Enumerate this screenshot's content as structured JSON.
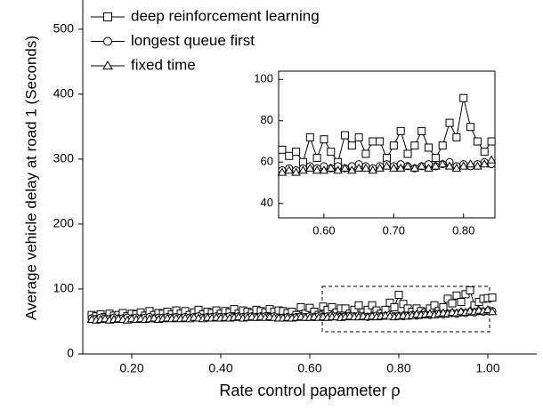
{
  "chart_data": [
    {
      "type": "line",
      "x_label": "Rate control papameter ρ",
      "y_label": "Average vehicle delay at road 1 (Seconds)",
      "legend": "upper left",
      "xlim": [
        0.09,
        1.11
      ],
      "ylim": [
        0,
        545
      ],
      "xticks": [
        {
          "value": 0.2,
          "label": "0.20"
        },
        {
          "value": 0.4,
          "label": "0.40"
        },
        {
          "value": 0.6,
          "label": "0.60"
        },
        {
          "value": 0.8,
          "label": "0.80"
        },
        {
          "value": 1.0,
          "label": "1.00"
        }
      ],
      "yticks": [
        0,
        100,
        200,
        300,
        400,
        500
      ],
      "x": [
        0.11,
        0.12,
        0.13,
        0.14,
        0.15,
        0.16,
        0.17,
        0.18,
        0.19,
        0.2,
        0.21,
        0.22,
        0.23,
        0.24,
        0.25,
        0.26,
        0.27,
        0.28,
        0.29,
        0.3,
        0.31,
        0.32,
        0.33,
        0.34,
        0.35,
        0.36,
        0.37,
        0.38,
        0.39,
        0.4,
        0.41,
        0.42,
        0.43,
        0.44,
        0.45,
        0.46,
        0.47,
        0.48,
        0.49,
        0.5,
        0.51,
        0.52,
        0.53,
        0.54,
        0.55,
        0.56,
        0.57,
        0.58,
        0.59,
        0.6,
        0.61,
        0.62,
        0.63,
        0.64,
        0.65,
        0.66,
        0.67,
        0.68,
        0.69,
        0.7,
        0.71,
        0.72,
        0.73,
        0.74,
        0.75,
        0.76,
        0.77,
        0.78,
        0.79,
        0.8,
        0.81,
        0.82,
        0.83,
        0.84,
        0.85,
        0.86,
        0.87,
        0.88,
        0.89,
        0.9,
        0.91,
        0.92,
        0.93,
        0.94,
        0.95,
        0.96,
        0.97,
        0.98,
        0.99,
        1.0,
        1.01
      ],
      "series": [
        {
          "name": "deep reinforcement learning",
          "color": "#000000",
          "marker": "square",
          "values": [
            60,
            58,
            61,
            57,
            62,
            59,
            60,
            63,
            58,
            62,
            61,
            64,
            59,
            66,
            60,
            63,
            62,
            65,
            61,
            67,
            62,
            66,
            60,
            64,
            68,
            61,
            65,
            63,
            67,
            62,
            66,
            64,
            69,
            62,
            67,
            65,
            63,
            68,
            66,
            64,
            69,
            65,
            67,
            66,
            63,
            65,
            60,
            72,
            62,
            71,
            65,
            60,
            73,
            68,
            72,
            64,
            70,
            70,
            62,
            68,
            75,
            64,
            68,
            75,
            67,
            62,
            68,
            79,
            72,
            91,
            77,
            70,
            65,
            70,
            66,
            64,
            70,
            75,
            66,
            72,
            85,
            78,
            90,
            80,
            92,
            98,
            75,
            80,
            85,
            86,
            87
          ]
        },
        {
          "name": "longest queue first",
          "color": "#000000",
          "marker": "circle",
          "values": [
            55,
            54,
            56,
            55,
            54,
            56,
            55,
            55,
            56,
            55,
            56,
            55,
            56,
            57,
            55,
            56,
            56,
            57,
            56,
            57,
            56,
            57,
            56,
            57,
            58,
            56,
            57,
            57,
            58,
            57,
            57,
            58,
            57,
            58,
            57,
            58,
            58,
            57,
            58,
            58,
            57,
            58,
            56,
            56,
            57,
            56,
            57,
            58,
            57,
            58,
            57,
            58,
            57,
            58,
            59,
            58,
            57,
            58,
            59,
            58,
            59,
            58,
            57,
            58,
            59,
            58,
            59,
            60,
            58,
            59,
            58,
            59,
            60,
            59,
            60,
            61,
            60,
            61,
            62,
            61,
            62,
            63,
            62,
            64,
            63,
            65,
            64,
            66,
            65,
            66,
            66
          ]
        },
        {
          "name": "fixed time",
          "color": "#000000",
          "marker": "triangle",
          "values": [
            53,
            52,
            53,
            54,
            52,
            53,
            54,
            53,
            52,
            54,
            53,
            54,
            53,
            54,
            55,
            53,
            54,
            55,
            54,
            55,
            54,
            55,
            54,
            56,
            55,
            54,
            56,
            55,
            56,
            55,
            56,
            55,
            56,
            57,
            55,
            56,
            57,
            56,
            57,
            56,
            57,
            56,
            55,
            55,
            56,
            55,
            56,
            57,
            56,
            56,
            57,
            56,
            57,
            56,
            57,
            57,
            56,
            57,
            58,
            57,
            57,
            58,
            57,
            58,
            57,
            58,
            59,
            58,
            57,
            58,
            59,
            58,
            59,
            61,
            60,
            61,
            62,
            60,
            62,
            63,
            62,
            64,
            63,
            65,
            64,
            66,
            65,
            67,
            66,
            68,
            65
          ]
        }
      ]
    },
    {
      "type": "line",
      "xlim": [
        0.535,
        0.845
      ],
      "ylim": [
        33,
        104
      ],
      "xticks": [
        {
          "value": 0.6,
          "label": "0.60"
        },
        {
          "value": 0.7,
          "label": "0.70"
        },
        {
          "value": 0.8,
          "label": "0.80"
        }
      ],
      "yticks": [
        40,
        60,
        80,
        100
      ],
      "x": [
        0.54,
        0.55,
        0.56,
        0.57,
        0.58,
        0.59,
        0.6,
        0.61,
        0.62,
        0.63,
        0.64,
        0.65,
        0.66,
        0.67,
        0.68,
        0.69,
        0.7,
        0.71,
        0.72,
        0.73,
        0.74,
        0.75,
        0.76,
        0.77,
        0.78,
        0.79,
        0.8,
        0.81,
        0.82,
        0.83,
        0.84
      ],
      "series": [
        {
          "color": "#000000",
          "marker": "square",
          "values": [
            66,
            63,
            65,
            60,
            72,
            62,
            71,
            65,
            60,
            73,
            68,
            72,
            64,
            70,
            70,
            62,
            68,
            75,
            64,
            68,
            75,
            67,
            62,
            68,
            79,
            72,
            91,
            77,
            70,
            65,
            70
          ]
        },
        {
          "color": "#000000",
          "marker": "circle",
          "values": [
            56,
            57,
            56,
            57,
            58,
            57,
            58,
            57,
            58,
            57,
            58,
            59,
            58,
            57,
            58,
            59,
            58,
            59,
            58,
            57,
            58,
            59,
            58,
            59,
            60,
            58,
            59,
            58,
            59,
            60,
            59
          ]
        },
        {
          "color": "#000000",
          "marker": "triangle",
          "values": [
            55,
            56,
            55,
            56,
            57,
            56,
            56,
            57,
            56,
            57,
            56,
            57,
            57,
            56,
            57,
            58,
            57,
            57,
            58,
            57,
            58,
            57,
            58,
            59,
            58,
            57,
            58,
            59,
            58,
            59,
            61
          ]
        }
      ]
    }
  ]
}
